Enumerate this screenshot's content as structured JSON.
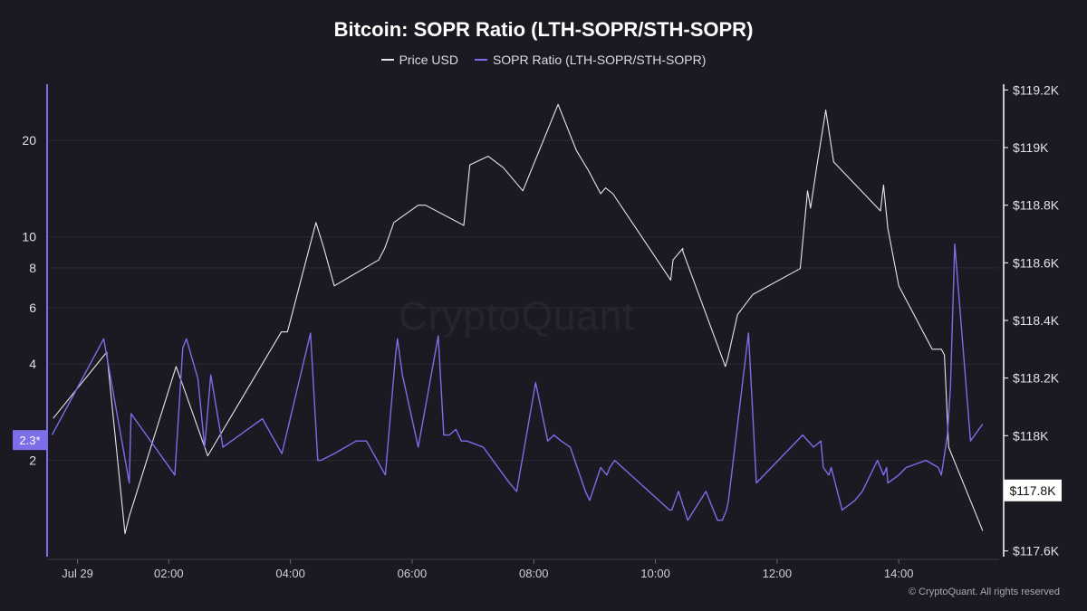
{
  "footer": "© CryptoQuant. All rights reserved",
  "watermark": "CryptoQuant",
  "chart_data": {
    "type": "line",
    "title": "Bitcoin: SOPR Ratio (LTH-SOPR/STH-SOPR)",
    "legend_position": "top-center",
    "grid": true,
    "x_ticks": [
      "Jul 29",
      "02:00",
      "04:00",
      "06:00",
      "08:00",
      "10:00",
      "12:00",
      "14:00"
    ],
    "x_tick_hours": [
      0.5,
      2,
      4,
      6,
      8,
      10,
      12,
      14
    ],
    "xlim": [
      0,
      15.65
    ],
    "left_axis": {
      "scale": "log",
      "ylim": [
        1,
        30
      ],
      "ticks": [
        2,
        4,
        6,
        8,
        10,
        20
      ],
      "current_label": "2.3*",
      "current_value": 2.3,
      "color": "#7b6ee8"
    },
    "right_axis": {
      "ylim": [
        117580,
        119220
      ],
      "ticks": [
        117600,
        117800,
        118000,
        118200,
        118400,
        118600,
        118800,
        119000,
        119200
      ],
      "tick_labels": [
        "$117.6K",
        "$117.8K",
        "$118K",
        "$118.2K",
        "$118.4K",
        "$118.6K",
        "$118.8K",
        "$119K",
        "$119.2K"
      ],
      "current_label": "$117.8K",
      "current_value": 117810
    },
    "series": [
      {
        "name": "Price USD",
        "axis": "right",
        "color": "#e6e6ea",
        "x": [
          0.1,
          0.98,
          1.28,
          1.35,
          2.12,
          2.29,
          2.64,
          3.85,
          3.95,
          4.42,
          4.55,
          4.72,
          5.45,
          5.55,
          5.7,
          6.1,
          6.22,
          6.85,
          6.95,
          7.25,
          7.5,
          7.82,
          8.4,
          8.7,
          8.9,
          9.1,
          9.18,
          9.3,
          10.25,
          10.29,
          10.45,
          10.45,
          11.15,
          11.19,
          11.35,
          11.6,
          12.38,
          12.5,
          12.55,
          12.65,
          12.8,
          12.93,
          13.7,
          13.75,
          13.82,
          14.0,
          14.55,
          14.7,
          14.75,
          14.82,
          15.38
        ],
        "y": [
          118060,
          118290,
          117660,
          117720,
          118240,
          118140,
          117930,
          118360,
          118360,
          118740,
          118650,
          118520,
          118610,
          118650,
          118740,
          118800,
          118800,
          118730,
          118940,
          118970,
          118930,
          118850,
          119150,
          118990,
          118920,
          118840,
          118860,
          118840,
          118540,
          118610,
          118650,
          118640,
          118240,
          118270,
          118420,
          118490,
          118580,
          118850,
          118790,
          118930,
          119130,
          118950,
          118780,
          118870,
          118720,
          118520,
          118300,
          118300,
          118280,
          117960,
          117670
        ]
      },
      {
        "name": "SOPR Ratio (LTH-SOPR/STH-SOPR)",
        "axis": "left",
        "color": "#7b6ee8",
        "x": [
          0.08,
          0.93,
          1.35,
          1.38,
          2.1,
          2.23,
          2.29,
          2.48,
          2.59,
          2.69,
          2.89,
          3.54,
          3.86,
          4.33,
          4.45,
          4.5,
          4.72,
          5.08,
          5.25,
          5.56,
          5.73,
          5.76,
          5.84,
          6.1,
          6.43,
          6.52,
          6.61,
          6.72,
          6.81,
          6.9,
          7.17,
          7.6,
          7.72,
          8.03,
          8.23,
          8.33,
          8.45,
          8.6,
          8.85,
          8.92,
          9.1,
          9.2,
          9.25,
          9.33,
          10.23,
          10.27,
          10.38,
          10.53,
          10.83,
          11.02,
          11.1,
          11.17,
          11.2,
          11.53,
          11.66,
          12.42,
          12.6,
          12.72,
          12.76,
          12.85,
          12.89,
          13.07,
          13.28,
          13.4,
          13.65,
          13.75,
          13.8,
          13.82,
          14.0,
          14.12,
          14.45,
          14.65,
          14.7,
          14.77,
          14.8,
          14.85,
          14.92,
          15.18,
          15.38
        ],
        "y": [
          2.4,
          4.8,
          1.7,
          2.8,
          1.8,
          4.5,
          4.8,
          3.6,
          2.2,
          3.7,
          2.2,
          2.7,
          2.1,
          5.0,
          2.0,
          2.0,
          2.1,
          2.3,
          2.3,
          1.8,
          4.3,
          4.8,
          3.7,
          2.2,
          4.9,
          2.4,
          2.4,
          2.5,
          2.3,
          2.3,
          2.2,
          1.7,
          1.6,
          3.5,
          2.3,
          2.4,
          2.3,
          2.2,
          1.6,
          1.5,
          1.9,
          1.8,
          1.9,
          2.0,
          1.4,
          1.4,
          1.6,
          1.3,
          1.6,
          1.3,
          1.3,
          1.4,
          1.5,
          5.0,
          1.7,
          2.4,
          2.2,
          2.3,
          1.9,
          1.8,
          1.9,
          1.4,
          1.5,
          1.6,
          2.0,
          1.8,
          1.9,
          1.7,
          1.8,
          1.9,
          2.0,
          1.9,
          1.8,
          2.2,
          2.4,
          3.4,
          9.5,
          2.3,
          2.6
        ]
      }
    ]
  }
}
